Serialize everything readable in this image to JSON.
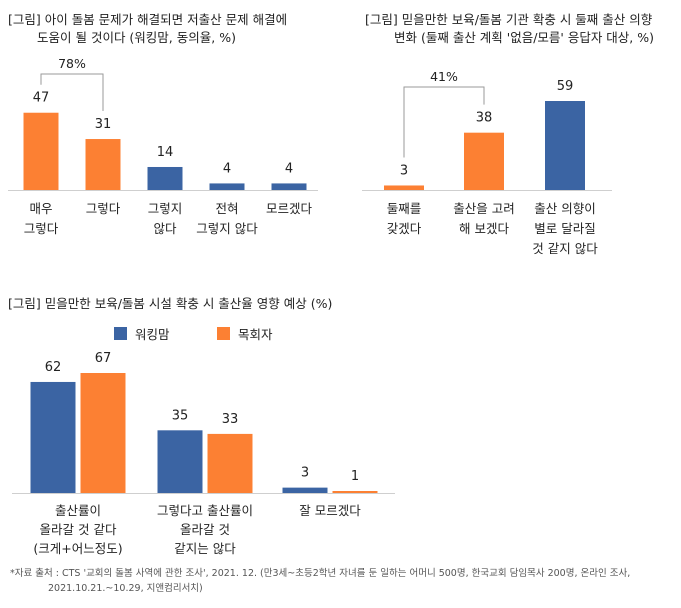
{
  "colors": {
    "orange": "#fc8033",
    "blue": "#3b64a3",
    "axis": "#cfcfcf",
    "bracket": "#9a9a9a"
  },
  "chart_data": [
    {
      "type": "bar",
      "title_lines": [
        "[그림] 아이 돌봄 문제가 해결되면 저출산 문제 해결에",
        "도움이 될 것이다 (워킹맘, 동의율, %)"
      ],
      "categories": [
        [
          "매우",
          "그렇다"
        ],
        [
          "그렇다"
        ],
        [
          "그렇지",
          "않다"
        ],
        [
          "전혀",
          "그렇지 않다"
        ],
        [
          "모르겠다"
        ]
      ],
      "values": [
        47,
        31,
        14,
        4,
        4
      ],
      "value_labels": [
        "47",
        "31",
        "14",
        "4",
        "4"
      ],
      "bar_colors": [
        "orange",
        "orange",
        "blue",
        "blue",
        "blue"
      ],
      "annotation": {
        "label": "78%",
        "from": 0,
        "to": 1
      },
      "ylim": [
        0,
        59
      ]
    },
    {
      "type": "bar",
      "title_lines": [
        "[그림] 믿을만한 보육/돌봄 기관 확충 시 둘째 출산 의향",
        "변화 (둘째 출산 계획 '없음/모름' 응답자 대상, %)"
      ],
      "categories": [
        [
          "둘째를",
          "갖겠다"
        ],
        [
          "출산을 고려",
          "해 보겠다"
        ],
        [
          "출산 의향이",
          "별로 달라질",
          "것 같지 않다"
        ]
      ],
      "values": [
        3,
        38,
        59
      ],
      "value_labels": [
        "3",
        "38",
        "59"
      ],
      "bar_colors": [
        "orange",
        "orange",
        "blue"
      ],
      "annotation": {
        "label": "41%",
        "from": 0,
        "to": 1
      },
      "ylim": [
        0,
        59
      ]
    },
    {
      "type": "bar",
      "title_lines": [
        "[그림] 믿을만한 보육/돌봄 시설 확충 시 출산율 영향 예상 (%)"
      ],
      "categories": [
        [
          "출산률이",
          "올라갈 것 같다",
          "(크게+어느정도)"
        ],
        [
          "그렇다고 출산률이",
          "올라갈 것",
          "같지는 않다"
        ],
        [
          "잘 모르겠다"
        ]
      ],
      "series": [
        {
          "name": "워킹맘",
          "color": "blue",
          "values": [
            62,
            35,
            3
          ],
          "value_labels": [
            "62",
            "35",
            "3"
          ]
        },
        {
          "name": "목회자",
          "color": "orange",
          "values": [
            67,
            33,
            1
          ],
          "value_labels": [
            "67",
            "33",
            "1"
          ]
        }
      ],
      "ylim": [
        0,
        67
      ]
    }
  ],
  "source_lines": [
    "*자료 출처 : CTS '교회의 돌봄 사역에 관한 조사', 2021. 12. (만3세~초등2학년 자녀를 둔 일하는 어머니 500명, 한국교회 담임목사 200명, 온라인 조사,",
    "2021.10.21.~10.29, 지앤컴리서치)"
  ]
}
